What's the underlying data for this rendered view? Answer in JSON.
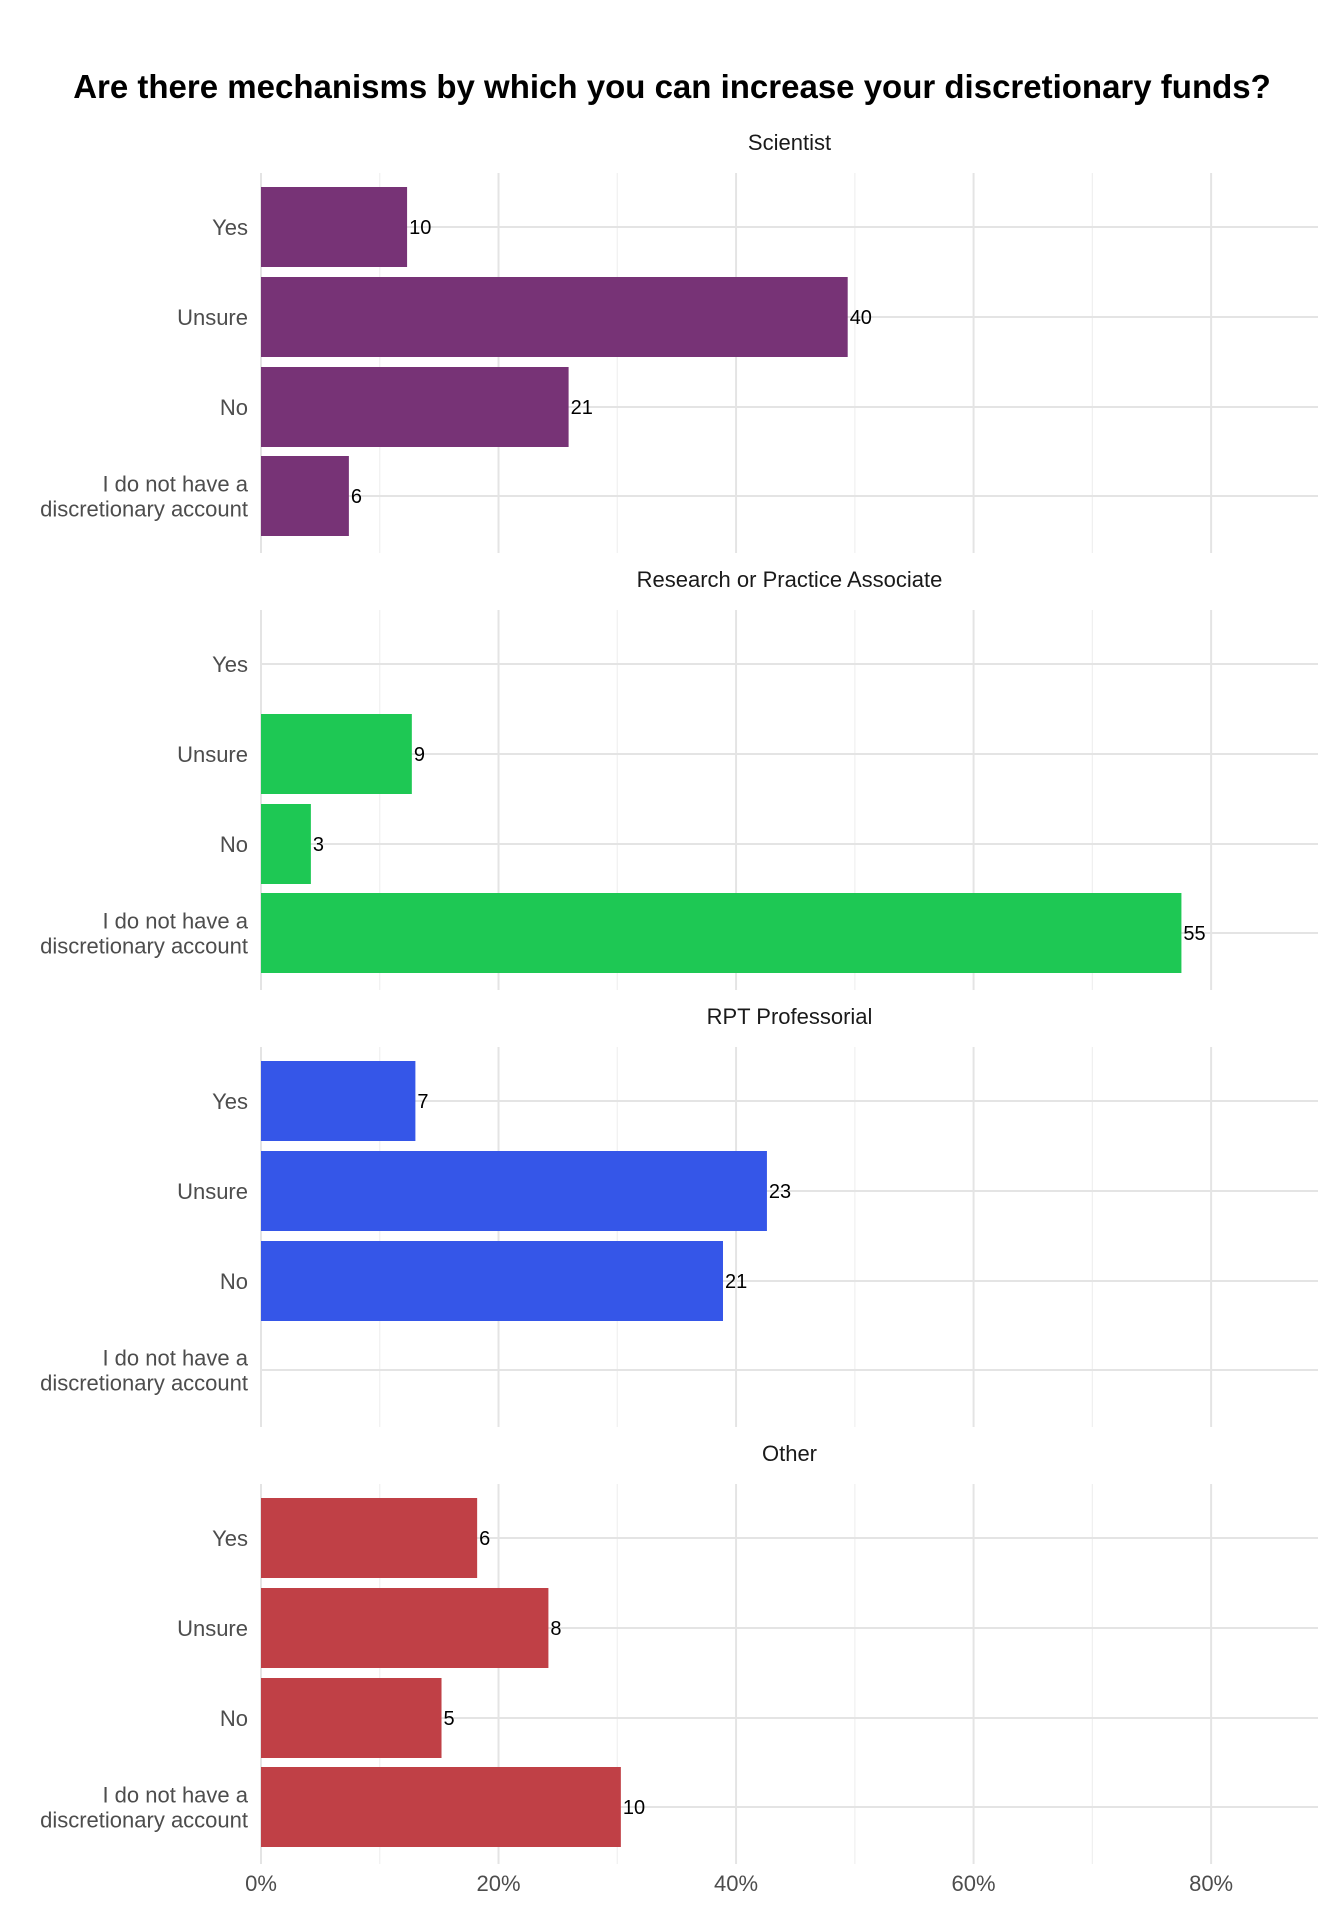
{
  "chart_data": {
    "type": "bar",
    "orientation": "horizontal",
    "title": "Are there mechanisms by which you can increase your discretionary funds?",
    "categories": [
      "Yes",
      "Unsure",
      "No",
      "I do not have a discretionary account"
    ],
    "category_lines": [
      [
        "Yes"
      ],
      [
        "Unsure"
      ],
      [
        "No"
      ],
      [
        "I do not have a",
        "discretionary account"
      ]
    ],
    "x_ticks": [
      0,
      20,
      40,
      60,
      80
    ],
    "x_tick_labels": [
      "0%",
      "20%",
      "40%",
      "60%",
      "80%"
    ],
    "xlim": [
      0,
      89
    ],
    "value_format": "percent",
    "grid": true,
    "panels": [
      {
        "name": "Scientist",
        "color": "#773376",
        "counts": [
          10,
          40,
          21,
          6
        ],
        "percent": [
          12.3,
          49.4,
          25.9,
          7.4
        ]
      },
      {
        "name": "Research or Practice Associate",
        "color": "#1EC854",
        "counts": [
          null,
          9,
          3,
          55
        ],
        "percent": [
          0,
          12.7,
          4.2,
          77.5
        ]
      },
      {
        "name": "RPT Professorial",
        "color": "#3556E8",
        "counts": [
          7,
          23,
          21,
          null
        ],
        "percent": [
          13.0,
          42.6,
          38.9,
          0
        ]
      },
      {
        "name": "Other",
        "color": "#C04046",
        "counts": [
          6,
          8,
          5,
          10
        ],
        "percent": [
          18.2,
          24.2,
          15.2,
          30.3
        ]
      }
    ]
  }
}
